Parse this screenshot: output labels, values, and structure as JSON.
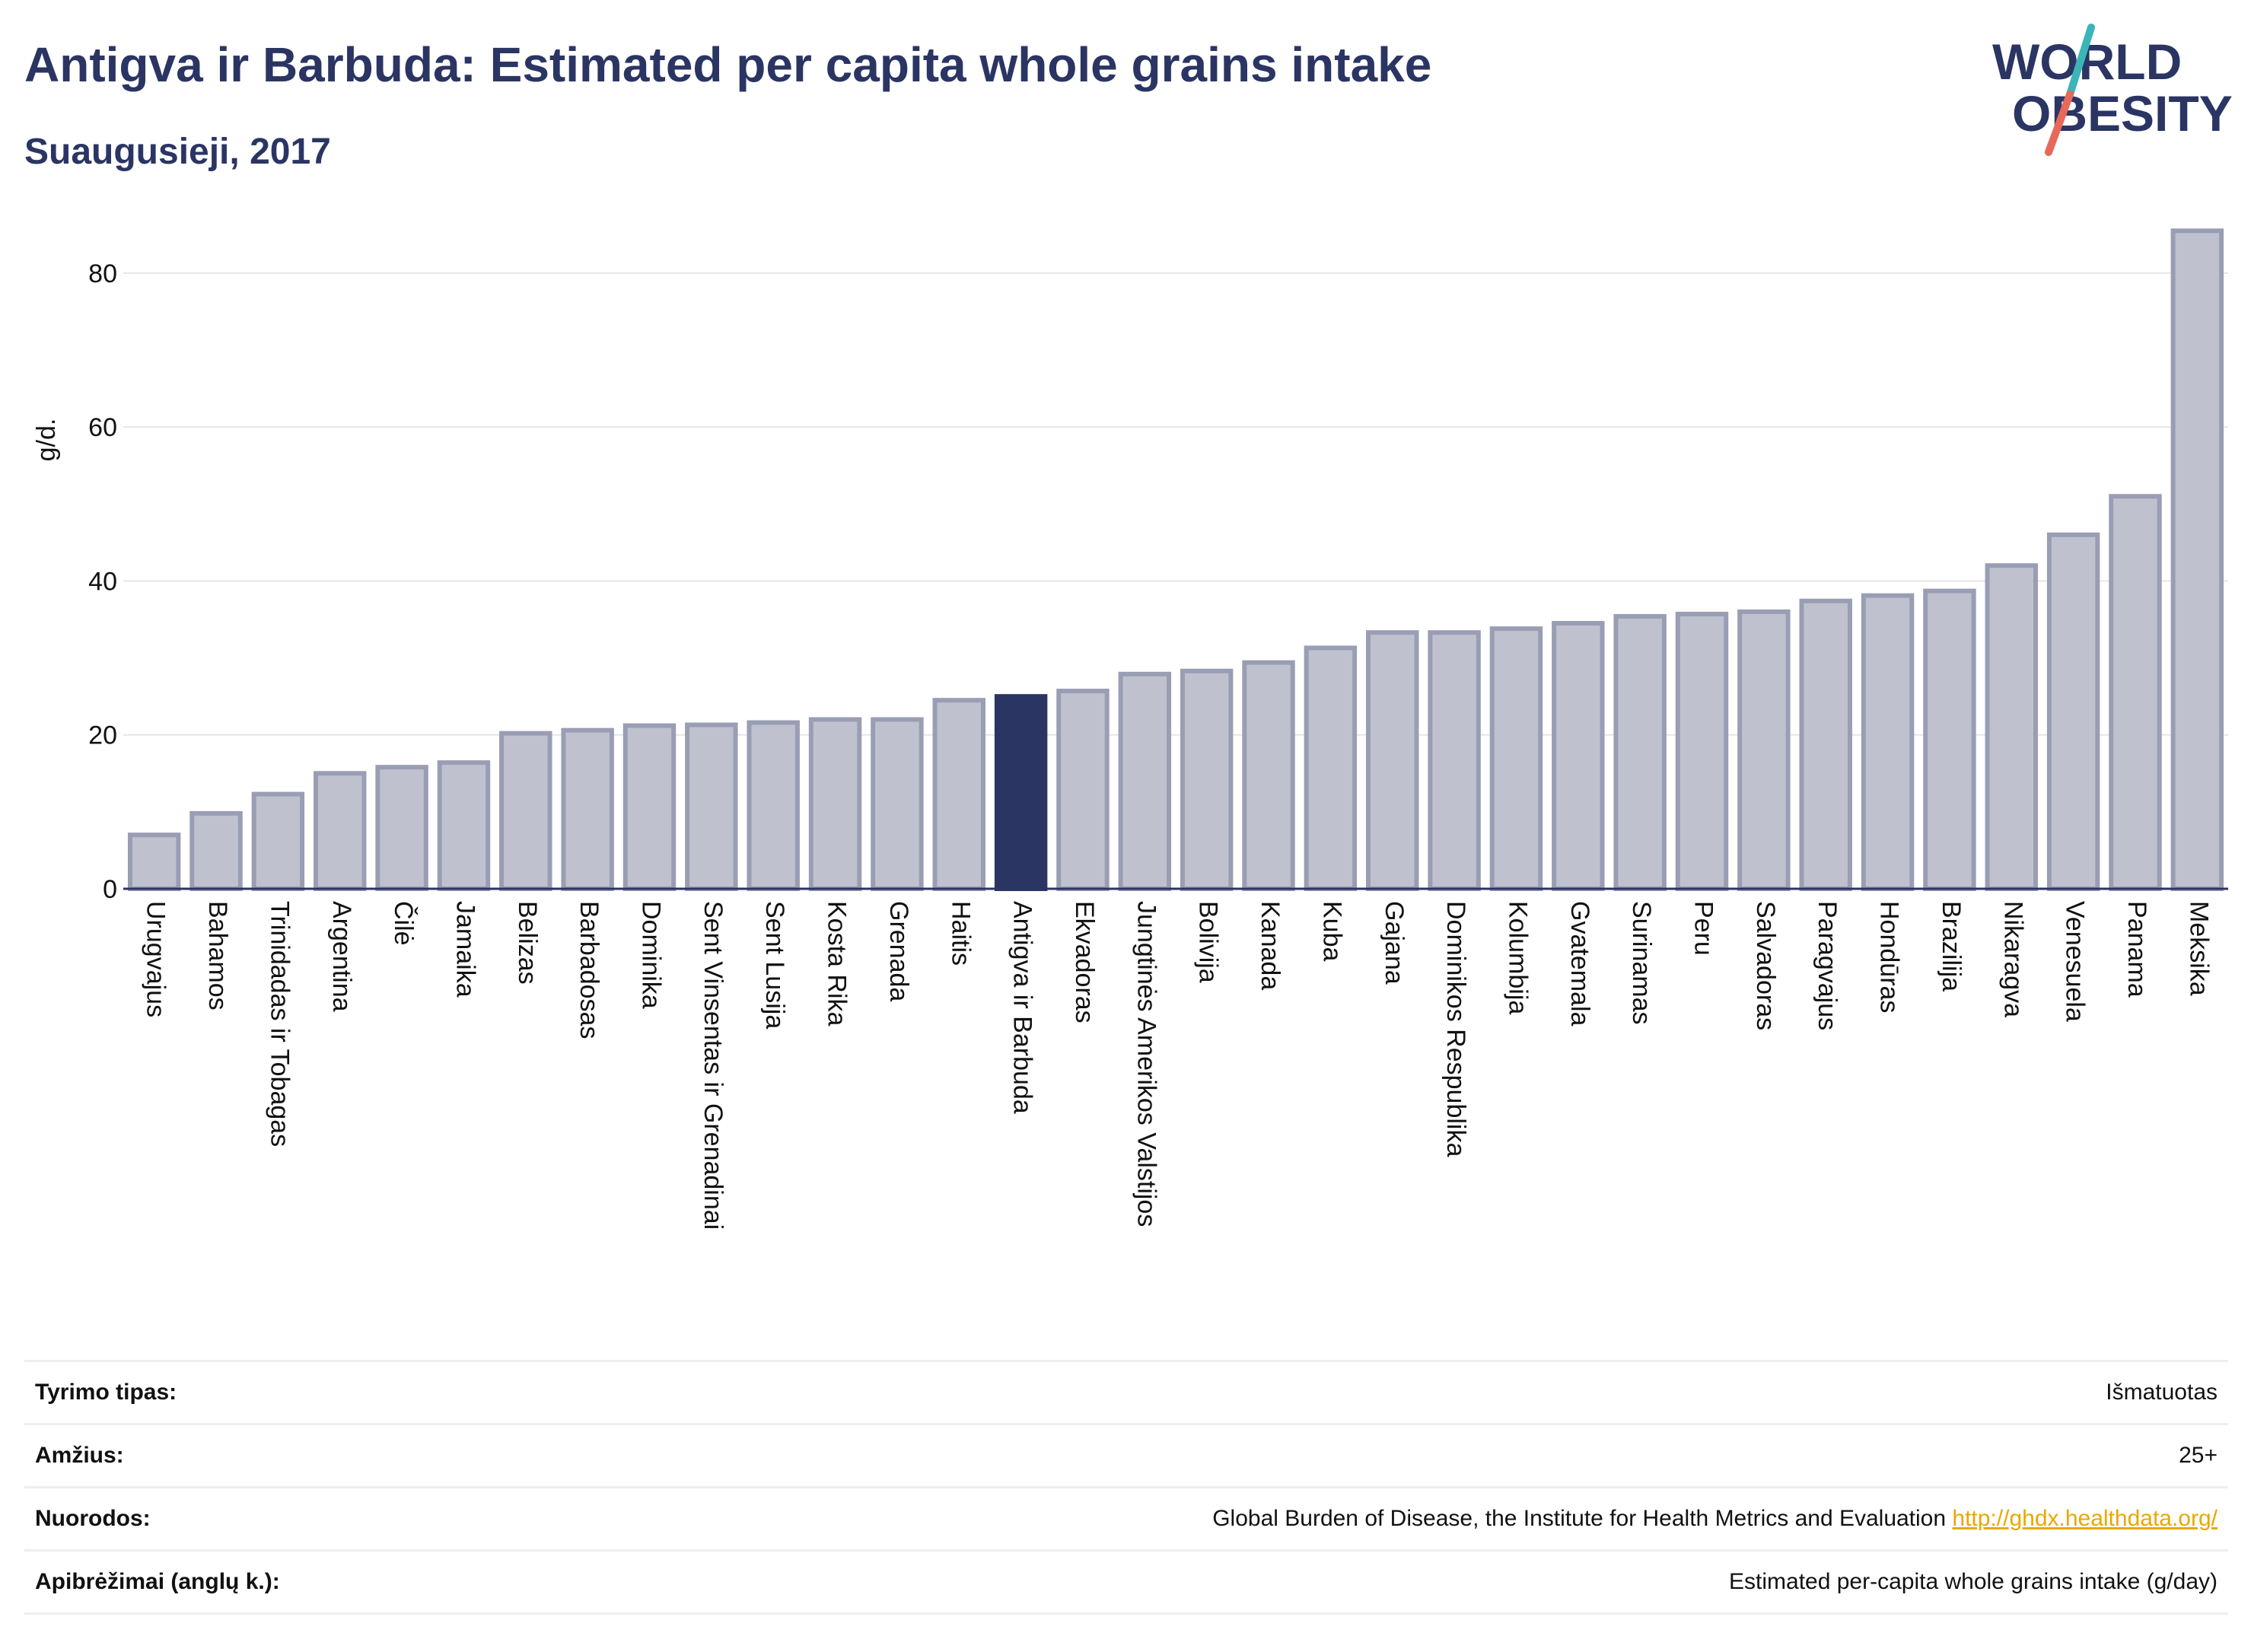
{
  "header": {
    "title": "Antigva ir Barbuda: Estimated per capita whole grains intake",
    "subtitle": "Suaugusieji, 2017"
  },
  "logo": {
    "line1": "WORLD",
    "line2": "OBESITY",
    "colors": {
      "text": "#2b3563",
      "slash_teal": "#3bb5b8",
      "slash_coral": "#e8685a"
    }
  },
  "chart_data": {
    "type": "bar",
    "ylabel": "g/d.",
    "ylim": [
      0,
      88
    ],
    "yticks": [
      0,
      20,
      40,
      60,
      80
    ],
    "grid": true,
    "highlight": "Antigva ir Barbuda",
    "colors": {
      "bar": "#bfc2ce",
      "bar_border": "#9a9eb4",
      "highlight": "#2b3563",
      "grid": "#e6e6e6"
    },
    "categories": [
      "Urugvajus",
      "Bahamos",
      "Trinidadas ir Tobagas",
      "Argentina",
      "Čilė",
      "Jamaika",
      "Belizas",
      "Barbadosas",
      "Dominika",
      "Sent Vinsentas ir Grenadinai",
      "Sent Lusija",
      "Kosta Rika",
      "Grenada",
      "Haitis",
      "Antigva ir Barbuda",
      "Ekvadoras",
      "Jungtinės Amerikos Valstijos",
      "Bolivija",
      "Kanada",
      "Kuba",
      "Gajana",
      "Dominikos Respublika",
      "Kolumbija",
      "Gvatemala",
      "Surinamas",
      "Peru",
      "Salvadoras",
      "Paragvajus",
      "Hondūras",
      "Brazilija",
      "Nikaragva",
      "Venesuela",
      "Panama",
      "Meksika"
    ],
    "values": [
      7.0,
      9.8,
      12.3,
      15.0,
      15.8,
      16.4,
      20.2,
      20.6,
      21.2,
      21.3,
      21.6,
      22.0,
      22.0,
      24.5,
      25.0,
      25.7,
      27.9,
      28.3,
      29.4,
      31.3,
      33.3,
      33.3,
      33.8,
      34.5,
      35.4,
      35.7,
      36.0,
      37.4,
      38.1,
      38.7,
      42.0,
      46.0,
      51.0,
      85.5
    ]
  },
  "meta": {
    "rows": [
      {
        "label": "Tyrimo tipas:",
        "value": "Išmatuotas"
      },
      {
        "label": "Amžius:",
        "value": "25+"
      },
      {
        "label": "Nuorodos:",
        "value": "Global Burden of Disease, the Institute for Health Metrics and Evaluation",
        "link": "http://ghdx.healthdata.org/"
      },
      {
        "label": "Apibrėžimai (anglų k.):",
        "value": "Estimated per-capita whole grains intake (g/day)"
      }
    ]
  }
}
